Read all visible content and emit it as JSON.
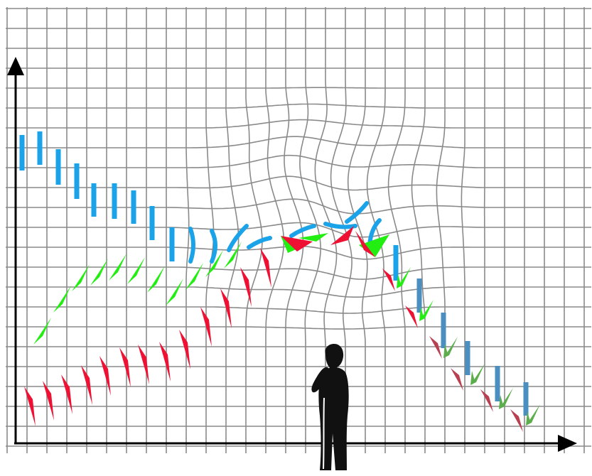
{
  "diagram": {
    "description_free": true,
    "colors": {
      "background": "#ffffff",
      "grid": "#8a8a8a",
      "axis": "#000000",
      "blue": "#1aa3e8",
      "green": "#22ee11",
      "red": "#ee1133",
      "steel_blue": "#4a8fc0",
      "dull_green": "#5cae4c",
      "dull_red": "#b84050",
      "figure_fill": "#111111"
    },
    "icons": {
      "y_axis": "arrow-up-icon",
      "x_axis": "arrow-right-icon",
      "observer": "person-silhouette-icon"
    },
    "grid": {
      "style": "square grid distorted by a lens-like warp in the upper middle region"
    }
  }
}
